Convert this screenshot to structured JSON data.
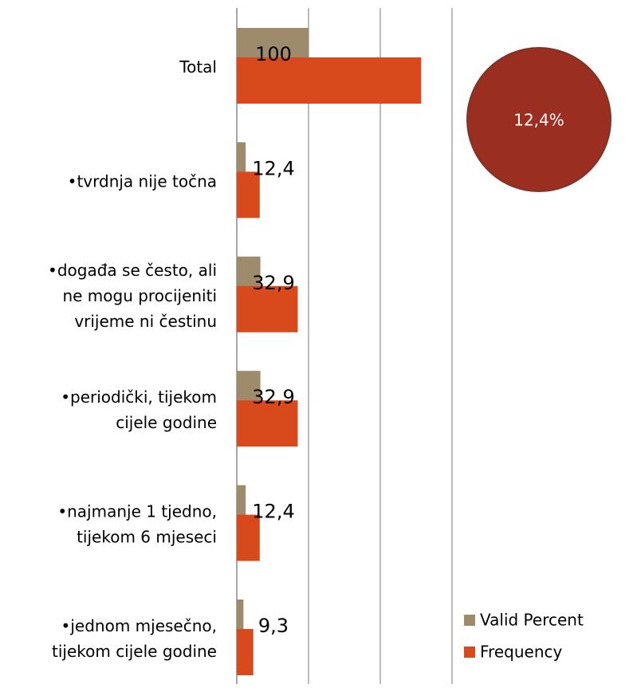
{
  "chart_data": {
    "type": "bar",
    "orientation": "horizontal",
    "categories": [
      "Total",
      "•tvrdnja nije točna",
      "•događa se često, ali ne mogu procijeniti vrijeme ni čestinu",
      "•periodički, tijekom cijele godine",
      "•najmanje 1 tjedno, tijekom 6 mjeseci",
      "•jednom mjesečno, tijekom cijele godine"
    ],
    "series": [
      {
        "name": "Valid Percent",
        "color": "#9e8b6c",
        "values": [
          100,
          12.4,
          32.9,
          32.9,
          12.4,
          9.3
        ],
        "value_labels": [
          "100",
          "12,4",
          "32,9",
          "32,9",
          "12,4",
          "9,3"
        ]
      },
      {
        "name": "Frequency",
        "color": "#d84a1b",
        "values": [
          257,
          32,
          85,
          85,
          32,
          23
        ]
      }
    ],
    "xlim": [
      0,
      300
    ],
    "xticks": [
      0,
      100,
      200,
      300
    ],
    "grid": true,
    "legend": "lower right",
    "annotation": "12,4%"
  }
}
